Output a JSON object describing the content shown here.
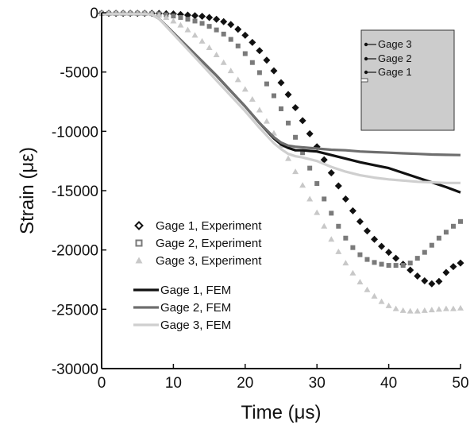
{
  "chart_data": {
    "type": "line",
    "xlabel": "Time (μs)",
    "ylabel": "Strain (με)",
    "xlim": [
      0,
      50
    ],
    "ylim": [
      -30000,
      0
    ],
    "x_ticks": [
      "0",
      "10",
      "20",
      "30",
      "40",
      "50"
    ],
    "y_ticks": [
      "0",
      "-5000",
      "-10000",
      "-15000",
      "-20000",
      "-25000",
      "-30000"
    ],
    "grid": false,
    "legend_position": "left-middle",
    "series": [
      {
        "name": "Gage 1, Experiment",
        "style": "markers",
        "marker": "diamond",
        "color": "#111111",
        "x": [
          0,
          1,
          2,
          3,
          4,
          5,
          6,
          7,
          8,
          9,
          10,
          11,
          12,
          13,
          14,
          15,
          16,
          17,
          18,
          19,
          20,
          21,
          22,
          23,
          24,
          25,
          26,
          27,
          28,
          29,
          30,
          31,
          32,
          33,
          34,
          35,
          36,
          37,
          38,
          39,
          40,
          41,
          42,
          43,
          44,
          45,
          46,
          47,
          48,
          49,
          50
        ],
        "y": [
          -50,
          -50,
          -50,
          -50,
          -50,
          -50,
          -50,
          -50,
          -60,
          -80,
          -100,
          -150,
          -200,
          -250,
          -300,
          -400,
          -550,
          -750,
          -1000,
          -1400,
          -1900,
          -2500,
          -3200,
          -4000,
          -4900,
          -5900,
          -6900,
          -8000,
          -9100,
          -10200,
          -11300,
          -12400,
          -13500,
          -14600,
          -15700,
          -16700,
          -17600,
          -18400,
          -19100,
          -19700,
          -20200,
          -20700,
          -21200,
          -21700,
          -22200,
          -22600,
          -22850,
          -22650,
          -21900,
          -21400,
          -21100
        ]
      },
      {
        "name": "Gage 2, Experiment",
        "style": "markers",
        "marker": "square",
        "color": "#7a7a7a",
        "x": [
          0,
          1,
          2,
          3,
          4,
          5,
          6,
          7,
          8,
          9,
          10,
          11,
          12,
          13,
          14,
          15,
          16,
          17,
          18,
          19,
          20,
          21,
          22,
          23,
          24,
          25,
          26,
          27,
          28,
          29,
          30,
          31,
          32,
          33,
          34,
          35,
          36,
          37,
          38,
          39,
          40,
          41,
          42,
          43,
          44,
          45,
          46,
          47,
          48,
          49,
          50
        ],
        "y": [
          -50,
          -50,
          -50,
          -50,
          -50,
          -50,
          -50,
          -60,
          -100,
          -180,
          -280,
          -400,
          -550,
          -700,
          -900,
          -1150,
          -1450,
          -1800,
          -2250,
          -2800,
          -3450,
          -4200,
          -5050,
          -6000,
          -7000,
          -8100,
          -9300,
          -10500,
          -11800,
          -13100,
          -14400,
          -15700,
          -16900,
          -18000,
          -19000,
          -19800,
          -20400,
          -20800,
          -21050,
          -21200,
          -21300,
          -21300,
          -21300,
          -21100,
          -20700,
          -20200,
          -19600,
          -19000,
          -18500,
          -18000,
          -17600
        ]
      },
      {
        "name": "Gage 3, Experiment",
        "style": "markers",
        "marker": "triangle",
        "color": "#c8c8c8",
        "x": [
          0,
          1,
          2,
          3,
          4,
          5,
          6,
          7,
          8,
          9,
          10,
          11,
          12,
          13,
          14,
          15,
          16,
          17,
          18,
          19,
          20,
          21,
          22,
          23,
          24,
          25,
          26,
          27,
          28,
          29,
          30,
          31,
          32,
          33,
          34,
          35,
          36,
          37,
          38,
          39,
          40,
          41,
          42,
          43,
          44,
          45,
          46,
          47,
          48,
          49,
          50
        ],
        "y": [
          -50,
          -50,
          -50,
          -50,
          -50,
          -50,
          -50,
          -80,
          -200,
          -400,
          -700,
          -1050,
          -1450,
          -1900,
          -2400,
          -2950,
          -3550,
          -4200,
          -4900,
          -5650,
          -6450,
          -7300,
          -8200,
          -9150,
          -10150,
          -11200,
          -12300,
          -13400,
          -14550,
          -15700,
          -16850,
          -18000,
          -19100,
          -20150,
          -21100,
          -21950,
          -22700,
          -23350,
          -23900,
          -24350,
          -24700,
          -24950,
          -25100,
          -25150,
          -25150,
          -25100,
          -25050,
          -25000,
          -24950,
          -24950,
          -24900
        ]
      },
      {
        "name": "Gage 1, FEM",
        "style": "line",
        "color": "#111111",
        "x": [
          0,
          6,
          7,
          8,
          10,
          12,
          14,
          16,
          18,
          20,
          22,
          24,
          25,
          26,
          27,
          28,
          29,
          30,
          32,
          34,
          36,
          38,
          40,
          42,
          44,
          46,
          48,
          50
        ],
        "y": [
          -100,
          -100,
          -150,
          -500,
          -1700,
          -2900,
          -4100,
          -5300,
          -6600,
          -7900,
          -9300,
          -10600,
          -11100,
          -11400,
          -11600,
          -11600,
          -11650,
          -11700,
          -12000,
          -12300,
          -12600,
          -12850,
          -13100,
          -13500,
          -13900,
          -14300,
          -14700,
          -15150
        ]
      },
      {
        "name": "Gage 2, FEM",
        "style": "line",
        "color": "#6e6e6e",
        "x": [
          0,
          6,
          7,
          8,
          10,
          12,
          14,
          16,
          18,
          20,
          22,
          24,
          25,
          26,
          27,
          28,
          30,
          32,
          34,
          36,
          38,
          40,
          42,
          44,
          46,
          48,
          50
        ],
        "y": [
          -100,
          -100,
          -150,
          -500,
          -1700,
          -2900,
          -4100,
          -5300,
          -6600,
          -7900,
          -9300,
          -10500,
          -10950,
          -11200,
          -11300,
          -11350,
          -11450,
          -11550,
          -11600,
          -11700,
          -11750,
          -11800,
          -11850,
          -11900,
          -11950,
          -11980,
          -12000
        ]
      },
      {
        "name": "Gage 3, FEM",
        "style": "line",
        "color": "#cfcfcf",
        "x": [
          0,
          6,
          7,
          8,
          10,
          12,
          14,
          16,
          18,
          20,
          22,
          24,
          25,
          26,
          27,
          28,
          29,
          30,
          32,
          34,
          36,
          38,
          40,
          42,
          44,
          46,
          48,
          50
        ],
        "y": [
          -100,
          -100,
          -150,
          -500,
          -1800,
          -3100,
          -4400,
          -5700,
          -7000,
          -8300,
          -9700,
          -11000,
          -11500,
          -11900,
          -12100,
          -12200,
          -12350,
          -12500,
          -13000,
          -13400,
          -13700,
          -13900,
          -14050,
          -14150,
          -14250,
          -14300,
          -14350,
          -14350
        ]
      }
    ],
    "legend": [
      "Gage 1, Experiment",
      "Gage 2, Experiment",
      "Gage 3, Experiment",
      "Gage 1, FEM",
      "Gage 2, FEM",
      "Gage 3, FEM"
    ],
    "inset": {
      "fill": "#cccccc",
      "labels": [
        "Gage 3",
        "Gage 2",
        "Gage 1"
      ]
    }
  }
}
